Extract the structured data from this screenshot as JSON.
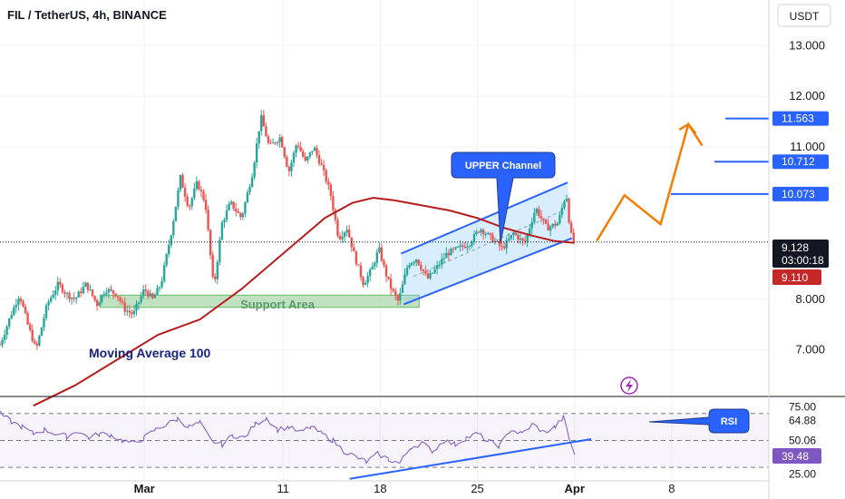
{
  "header": {
    "title": "FIL / TetherUS, 4h, BINANCE",
    "currency": "USDT"
  },
  "colors": {
    "up": "#26a69a",
    "down": "#ef5350",
    "ma": "#b71c1c",
    "channel": "#2962ff",
    "projection": "#f57c00",
    "support_fill": "#a5d6a7",
    "support_text": "#5a9a6a",
    "rsi": "#7e57c2",
    "callout": "#2962ff",
    "tag_dark": "#131722",
    "tag_red": "#c62828"
  },
  "annotations": {
    "upper_channel": "UPPER Channel",
    "support_area": "Support Area",
    "moving_average": "Moving Average  100",
    "rsi": "RSI"
  },
  "tags": {
    "price": "9.128",
    "countdown": "03:00:18",
    "ma_value": "9.110",
    "rsi_value": "39.48",
    "rsi_ma_value": "50.06"
  },
  "levels": [
    {
      "label": "11.563",
      "value": 11.563,
      "x_from": 800
    },
    {
      "label": "10.712",
      "value": 10.712,
      "x_from": 788
    },
    {
      "label": "10.073",
      "value": 10.073,
      "x_from": 740
    }
  ],
  "chart_data": [
    {
      "type": "candlestick",
      "ylim": [
        6.1,
        13.9
      ],
      "y_ticks": [
        "13.000",
        "12.000",
        "11.000",
        "8.000",
        "7.000"
      ],
      "y_tick_values": [
        13.0,
        12.0,
        11.0,
        8.0,
        7.0
      ],
      "x_ticks": [
        "Mar",
        "11",
        "18",
        "25",
        "Apr",
        "8"
      ],
      "x_tick_days": [
        1,
        11,
        18,
        25,
        32,
        39
      ],
      "x_range_days": [
        -9.4,
        46
      ],
      "price_anchors": [
        [
          -9.4,
          7.1
        ],
        [
          -8.6,
          7.7
        ],
        [
          -8,
          8.1
        ],
        [
          -7.4,
          7.5
        ],
        [
          -6.8,
          7.0
        ],
        [
          -6,
          7.9
        ],
        [
          -5.2,
          8.3
        ],
        [
          -4.6,
          8.1
        ],
        [
          -4,
          8.0
        ],
        [
          -3.2,
          8.3
        ],
        [
          -2.4,
          7.9
        ],
        [
          -1.8,
          8.2
        ],
        [
          -1,
          8.1
        ],
        [
          -0.4,
          7.8
        ],
        [
          0.2,
          7.7
        ],
        [
          1,
          8.2
        ],
        [
          1.6,
          8.0
        ],
        [
          2.2,
          8.3
        ],
        [
          3,
          9.4
        ],
        [
          3.6,
          10.4
        ],
        [
          4.2,
          9.8
        ],
        [
          4.8,
          10.3
        ],
        [
          5.4,
          9.9
        ],
        [
          6,
          8.2
        ],
        [
          6.6,
          9.5
        ],
        [
          7.2,
          9.9
        ],
        [
          8,
          9.6
        ],
        [
          8.8,
          10.5
        ],
        [
          9.4,
          11.6
        ],
        [
          10,
          11.0
        ],
        [
          10.8,
          11.2
        ],
        [
          11.4,
          10.5
        ],
        [
          12,
          11.1
        ],
        [
          12.6,
          10.7
        ],
        [
          13.2,
          11.0
        ],
        [
          13.8,
          10.6
        ],
        [
          14.4,
          10.1
        ],
        [
          15,
          9.2
        ],
        [
          15.6,
          9.4
        ],
        [
          16.2,
          8.8
        ],
        [
          16.8,
          8.3
        ],
        [
          17.4,
          8.6
        ],
        [
          17.9,
          9.0
        ],
        [
          18.4,
          8.5
        ],
        [
          18.8,
          8.2
        ],
        [
          19.3,
          7.95
        ],
        [
          20,
          8.7
        ],
        [
          20.6,
          8.8
        ],
        [
          21.4,
          8.4
        ],
        [
          22,
          8.6
        ],
        [
          22.8,
          8.9
        ],
        [
          23.6,
          9.0
        ],
        [
          24.4,
          9.1
        ],
        [
          25.2,
          9.4
        ],
        [
          26,
          9.2
        ],
        [
          26.8,
          9.0
        ],
        [
          27.6,
          9.3
        ],
        [
          28.4,
          9.1
        ],
        [
          29.2,
          9.8
        ],
        [
          30,
          9.4
        ],
        [
          30.8,
          9.5
        ],
        [
          31.4,
          10.1
        ],
        [
          31.7,
          9.3
        ],
        [
          32,
          9.1
        ]
      ],
      "last_price": 9.128
    },
    {
      "type": "line",
      "name": "Moving Average 100",
      "points": [
        [
          -7,
          5.9
        ],
        [
          -4,
          6.3
        ],
        [
          -1,
          6.8
        ],
        [
          2,
          7.3
        ],
        [
          5,
          7.6
        ],
        [
          8,
          8.2
        ],
        [
          11,
          8.9
        ],
        [
          14,
          9.6
        ],
        [
          16,
          9.9
        ],
        [
          17.5,
          10.0
        ],
        [
          19,
          9.95
        ],
        [
          21,
          9.85
        ],
        [
          23,
          9.75
        ],
        [
          25,
          9.6
        ],
        [
          27,
          9.4
        ],
        [
          29,
          9.25
        ],
        [
          30.5,
          9.15
        ],
        [
          32,
          9.11
        ]
      ]
    },
    {
      "type": "line",
      "name": "Projection",
      "points": [
        [
          33.6,
          9.15
        ],
        [
          35.6,
          10.05
        ],
        [
          38.2,
          9.48
        ],
        [
          40.2,
          11.45
        ],
        [
          41.2,
          11.03
        ]
      ]
    },
    {
      "type": "line",
      "name": "RSI",
      "ylim": [
        20,
        82
      ],
      "y_ticks": [
        "75.00",
        "64.88",
        "50.06",
        "39.48",
        "25.00"
      ],
      "y_tick_values": [
        75.0,
        64.88,
        50.06,
        39.48,
        25.0
      ],
      "bands": [
        70,
        30
      ],
      "mid": 50,
      "points": [
        [
          -9.4,
          70
        ],
        [
          -8.6,
          64
        ],
        [
          -7.8,
          60
        ],
        [
          -7,
          55
        ],
        [
          -6.2,
          58
        ],
        [
          -5.4,
          55
        ],
        [
          -4.6,
          53
        ],
        [
          -3.8,
          57
        ],
        [
          -3,
          52
        ],
        [
          -2.2,
          55
        ],
        [
          -1.4,
          54
        ],
        [
          -0.6,
          50
        ],
        [
          0.2,
          48
        ],
        [
          1,
          52
        ],
        [
          1.8,
          58
        ],
        [
          2.6,
          62
        ],
        [
          3.4,
          66
        ],
        [
          4.2,
          60
        ],
        [
          5,
          63
        ],
        [
          5.8,
          50
        ],
        [
          6.6,
          47
        ],
        [
          7.4,
          54
        ],
        [
          8.2,
          52
        ],
        [
          9,
          62
        ],
        [
          9.8,
          67
        ],
        [
          10.6,
          58
        ],
        [
          11.4,
          60
        ],
        [
          12.2,
          56
        ],
        [
          13,
          60
        ],
        [
          13.8,
          55
        ],
        [
          14.6,
          50
        ],
        [
          15.4,
          42
        ],
        [
          16.2,
          38
        ],
        [
          17,
          34
        ],
        [
          17.8,
          40
        ],
        [
          18.6,
          36
        ],
        [
          19.4,
          33
        ],
        [
          20.2,
          45
        ],
        [
          21,
          48
        ],
        [
          21.8,
          42
        ],
        [
          22.6,
          50
        ],
        [
          23.4,
          47
        ],
        [
          24.2,
          52
        ],
        [
          25,
          55
        ],
        [
          25.8,
          49
        ],
        [
          26.6,
          46
        ],
        [
          27.4,
          58
        ],
        [
          28.2,
          55
        ],
        [
          29,
          62
        ],
        [
          29.8,
          56
        ],
        [
          30.6,
          60
        ],
        [
          31.2,
          67
        ],
        [
          31.6,
          52
        ],
        [
          32,
          39.48
        ]
      ]
    }
  ]
}
